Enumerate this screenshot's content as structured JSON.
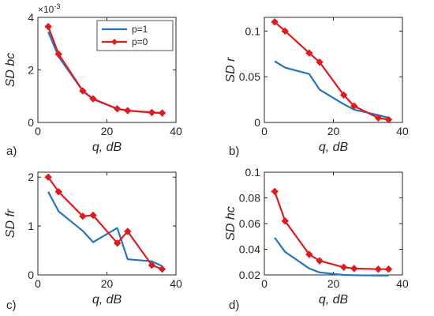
{
  "chart_data": [
    {
      "panel": "a)",
      "type": "line",
      "xlabel": "q, dB",
      "ylabel": "SD bc",
      "xlim": [
        0,
        40
      ],
      "ylim": [
        0,
        4
      ],
      "xticks": [
        "0",
        "20",
        "40"
      ],
      "yticks": [
        "0",
        "2",
        "4"
      ],
      "y_multiplier": "×10",
      "y_exponent": "-3",
      "grid": false,
      "legend_position": "top-right",
      "series": [
        {
          "name": "p=1",
          "color": "#1f77c4",
          "marker": "none",
          "x": [
            3,
            6,
            13,
            16,
            23,
            26,
            33,
            36
          ],
          "y": [
            3.45,
            2.5,
            1.2,
            0.88,
            0.52,
            0.45,
            0.38,
            0.36
          ]
        },
        {
          "name": "p=0",
          "color": "#e31a1c",
          "marker": "diamond",
          "x": [
            3,
            6,
            13,
            16,
            23,
            26,
            33,
            36
          ],
          "y": [
            3.65,
            2.6,
            1.2,
            0.9,
            0.52,
            0.45,
            0.38,
            0.36
          ]
        }
      ]
    },
    {
      "panel": "b)",
      "type": "line",
      "xlabel": "q, dB",
      "ylabel": "SD r",
      "xlim": [
        0,
        40
      ],
      "ylim": [
        0,
        0.115
      ],
      "xticks": [
        "0",
        "20",
        "40"
      ],
      "yticks": [
        "0",
        "0.05",
        "0.1"
      ],
      "grid": false,
      "series": [
        {
          "color": "#1f77c4",
          "marker": "none",
          "x": [
            3,
            6,
            13,
            16,
            23,
            26,
            33,
            36
          ],
          "y": [
            0.067,
            0.06,
            0.053,
            0.036,
            0.02,
            0.014,
            0.008,
            0.005
          ]
        },
        {
          "color": "#e31a1c",
          "marker": "diamond",
          "x": [
            3,
            6,
            13,
            16,
            23,
            26,
            33,
            36
          ],
          "y": [
            0.11,
            0.1,
            0.076,
            0.066,
            0.03,
            0.018,
            0.005,
            0.003
          ]
        }
      ]
    },
    {
      "panel": "c)",
      "type": "line",
      "xlabel": "q, dB",
      "ylabel": "SD fr",
      "xlim": [
        0,
        40
      ],
      "ylim": [
        0,
        2.1
      ],
      "xticks": [
        "0",
        "20",
        "40"
      ],
      "yticks": [
        "0",
        "1",
        "2"
      ],
      "grid": false,
      "series": [
        {
          "color": "#1f77c4",
          "marker": "none",
          "x": [
            3,
            6,
            13,
            16,
            23,
            26,
            33,
            36
          ],
          "y": [
            1.7,
            1.3,
            0.9,
            0.67,
            0.96,
            0.32,
            0.28,
            0.18
          ]
        },
        {
          "color": "#e31a1c",
          "marker": "diamond",
          "x": [
            3,
            6,
            13,
            16,
            23,
            26,
            33,
            36
          ],
          "y": [
            2.0,
            1.7,
            1.2,
            1.22,
            0.65,
            0.89,
            0.2,
            0.12
          ]
        }
      ]
    },
    {
      "panel": "d)",
      "type": "line",
      "xlabel": "q, dB",
      "ylabel": "SD hc",
      "xlim": [
        0,
        40
      ],
      "ylim": [
        0.02,
        0.1
      ],
      "xticks": [
        "0",
        "20",
        "40"
      ],
      "yticks": [
        "0.02",
        "0.04",
        "0.06",
        "0.08",
        "0.1"
      ],
      "grid": false,
      "series": [
        {
          "color": "#1f77c4",
          "marker": "none",
          "x": [
            3,
            6,
            13,
            16,
            23,
            26,
            33,
            36
          ],
          "y": [
            0.049,
            0.038,
            0.025,
            0.022,
            0.02,
            0.0198,
            0.0195,
            0.0195
          ]
        },
        {
          "color": "#e31a1c",
          "marker": "diamond",
          "x": [
            3,
            6,
            13,
            16,
            23,
            26,
            33,
            36
          ],
          "y": [
            0.085,
            0.062,
            0.036,
            0.031,
            0.026,
            0.025,
            0.0245,
            0.0245
          ]
        }
      ]
    }
  ]
}
